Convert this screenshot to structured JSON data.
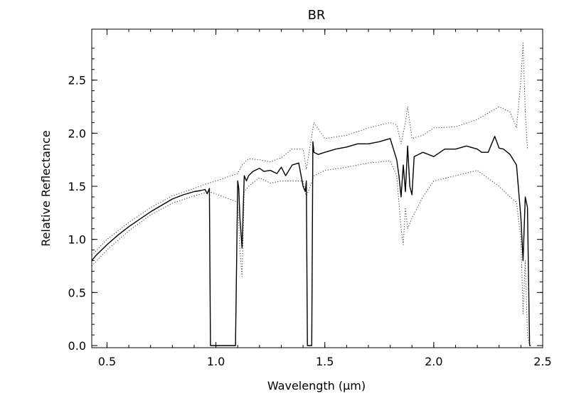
{
  "chart_data": {
    "type": "line",
    "title": "BR",
    "xlabel": "Wavelength (μm)",
    "ylabel": "Relative Reflectance",
    "xlim": [
      0.43,
      2.5
    ],
    "ylim": [
      -0.02,
      2.98
    ],
    "xticks": [
      0.5,
      1.0,
      1.5,
      2.0,
      2.5
    ],
    "xtick_labels": [
      "0.5",
      "1.0",
      "1.5",
      "2.0",
      "2.5"
    ],
    "yticks": [
      0.0,
      0.5,
      1.0,
      1.5,
      2.0,
      2.5
    ],
    "ytick_labels": [
      "0.0",
      "0.5",
      "1.0",
      "1.5",
      "2.0",
      "2.5"
    ],
    "grid": false,
    "legend": "none",
    "colors": {
      "series": "#000000",
      "error": "#333333"
    },
    "series": [
      {
        "style": "solid",
        "x": [
          0.43,
          0.45,
          0.5,
          0.55,
          0.6,
          0.65,
          0.7,
          0.75,
          0.8,
          0.85,
          0.9,
          0.93,
          0.95,
          0.96,
          0.97,
          0.975,
          0.98,
          1.09,
          1.1,
          1.105,
          1.11,
          1.12,
          1.13,
          1.14,
          1.15,
          1.17,
          1.2,
          1.22,
          1.25,
          1.28,
          1.3,
          1.32,
          1.35,
          1.38,
          1.4,
          1.41,
          1.415,
          1.42,
          1.44,
          1.445,
          1.45,
          1.47,
          1.5,
          1.55,
          1.6,
          1.65,
          1.7,
          1.75,
          1.8,
          1.83,
          1.84,
          1.85,
          1.86,
          1.87,
          1.88,
          1.89,
          1.9,
          1.91,
          1.93,
          1.95,
          2.0,
          2.05,
          2.1,
          2.15,
          2.2,
          2.22,
          2.25,
          2.28,
          2.3,
          2.32,
          2.35,
          2.38,
          2.4,
          2.41,
          2.42,
          2.43,
          2.44,
          2.445
        ],
        "y": [
          0.8,
          0.85,
          0.95,
          1.04,
          1.12,
          1.19,
          1.26,
          1.32,
          1.38,
          1.42,
          1.45,
          1.46,
          1.47,
          1.43,
          1.48,
          0.0,
          0.0,
          0.0,
          1.55,
          1.48,
          1.2,
          0.92,
          1.6,
          1.55,
          1.6,
          1.64,
          1.67,
          1.64,
          1.65,
          1.62,
          1.68,
          1.6,
          1.7,
          1.72,
          1.5,
          1.45,
          1.55,
          0.0,
          0.0,
          1.92,
          1.82,
          1.8,
          1.82,
          1.85,
          1.87,
          1.9,
          1.9,
          1.92,
          1.95,
          1.75,
          1.6,
          1.4,
          1.7,
          1.45,
          1.88,
          1.5,
          1.42,
          1.78,
          1.8,
          1.82,
          1.78,
          1.85,
          1.85,
          1.88,
          1.85,
          1.82,
          1.82,
          1.97,
          1.86,
          1.85,
          1.8,
          1.7,
          1.2,
          0.8,
          1.4,
          1.3,
          0.0,
          0.0
        ]
      },
      {
        "style": "dotted",
        "x": [
          0.43,
          0.5,
          0.6,
          0.7,
          0.8,
          0.9,
          0.95,
          0.97,
          1.1,
          1.12,
          1.15,
          1.2,
          1.25,
          1.3,
          1.35,
          1.4,
          1.415,
          1.45,
          1.5,
          1.6,
          1.7,
          1.8,
          1.83,
          1.85,
          1.87,
          1.88,
          1.9,
          1.95,
          2.0,
          2.1,
          2.2,
          2.3,
          2.35,
          2.38,
          2.4,
          2.41,
          2.42,
          2.43
        ],
        "y": [
          0.85,
          1.0,
          1.16,
          1.3,
          1.41,
          1.48,
          1.52,
          1.53,
          1.62,
          1.7,
          1.76,
          1.75,
          1.73,
          1.77,
          1.85,
          1.85,
          1.66,
          2.1,
          1.95,
          1.98,
          2.05,
          2.1,
          2.08,
          1.9,
          2.1,
          2.25,
          1.95,
          1.98,
          2.05,
          2.06,
          2.13,
          2.25,
          2.2,
          2.05,
          2.5,
          2.85,
          2.2,
          1.85
        ]
      },
      {
        "style": "dotted",
        "x": [
          0.43,
          0.5,
          0.6,
          0.7,
          0.8,
          0.9,
          0.95,
          0.97,
          1.1,
          1.11,
          1.12,
          1.13,
          1.15,
          1.2,
          1.25,
          1.3,
          1.35,
          1.4,
          1.415,
          1.45,
          1.5,
          1.6,
          1.7,
          1.8,
          1.83,
          1.85,
          1.86,
          1.87,
          1.88,
          1.9,
          1.95,
          2.0,
          2.1,
          2.2,
          2.3,
          2.35,
          2.38,
          2.4,
          2.41,
          2.42,
          2.43,
          2.44
        ],
        "y": [
          0.75,
          0.9,
          1.08,
          1.23,
          1.34,
          1.41,
          1.44,
          1.45,
          1.35,
          0.9,
          0.65,
          1.45,
          1.5,
          1.58,
          1.53,
          1.55,
          1.55,
          1.55,
          1.4,
          1.6,
          1.65,
          1.68,
          1.72,
          1.74,
          1.6,
          1.1,
          0.95,
          1.3,
          1.1,
          1.2,
          1.4,
          1.55,
          1.6,
          1.65,
          1.5,
          1.4,
          1.35,
          1.0,
          0.3,
          0.8,
          0.1,
          0.0
        ]
      }
    ]
  }
}
